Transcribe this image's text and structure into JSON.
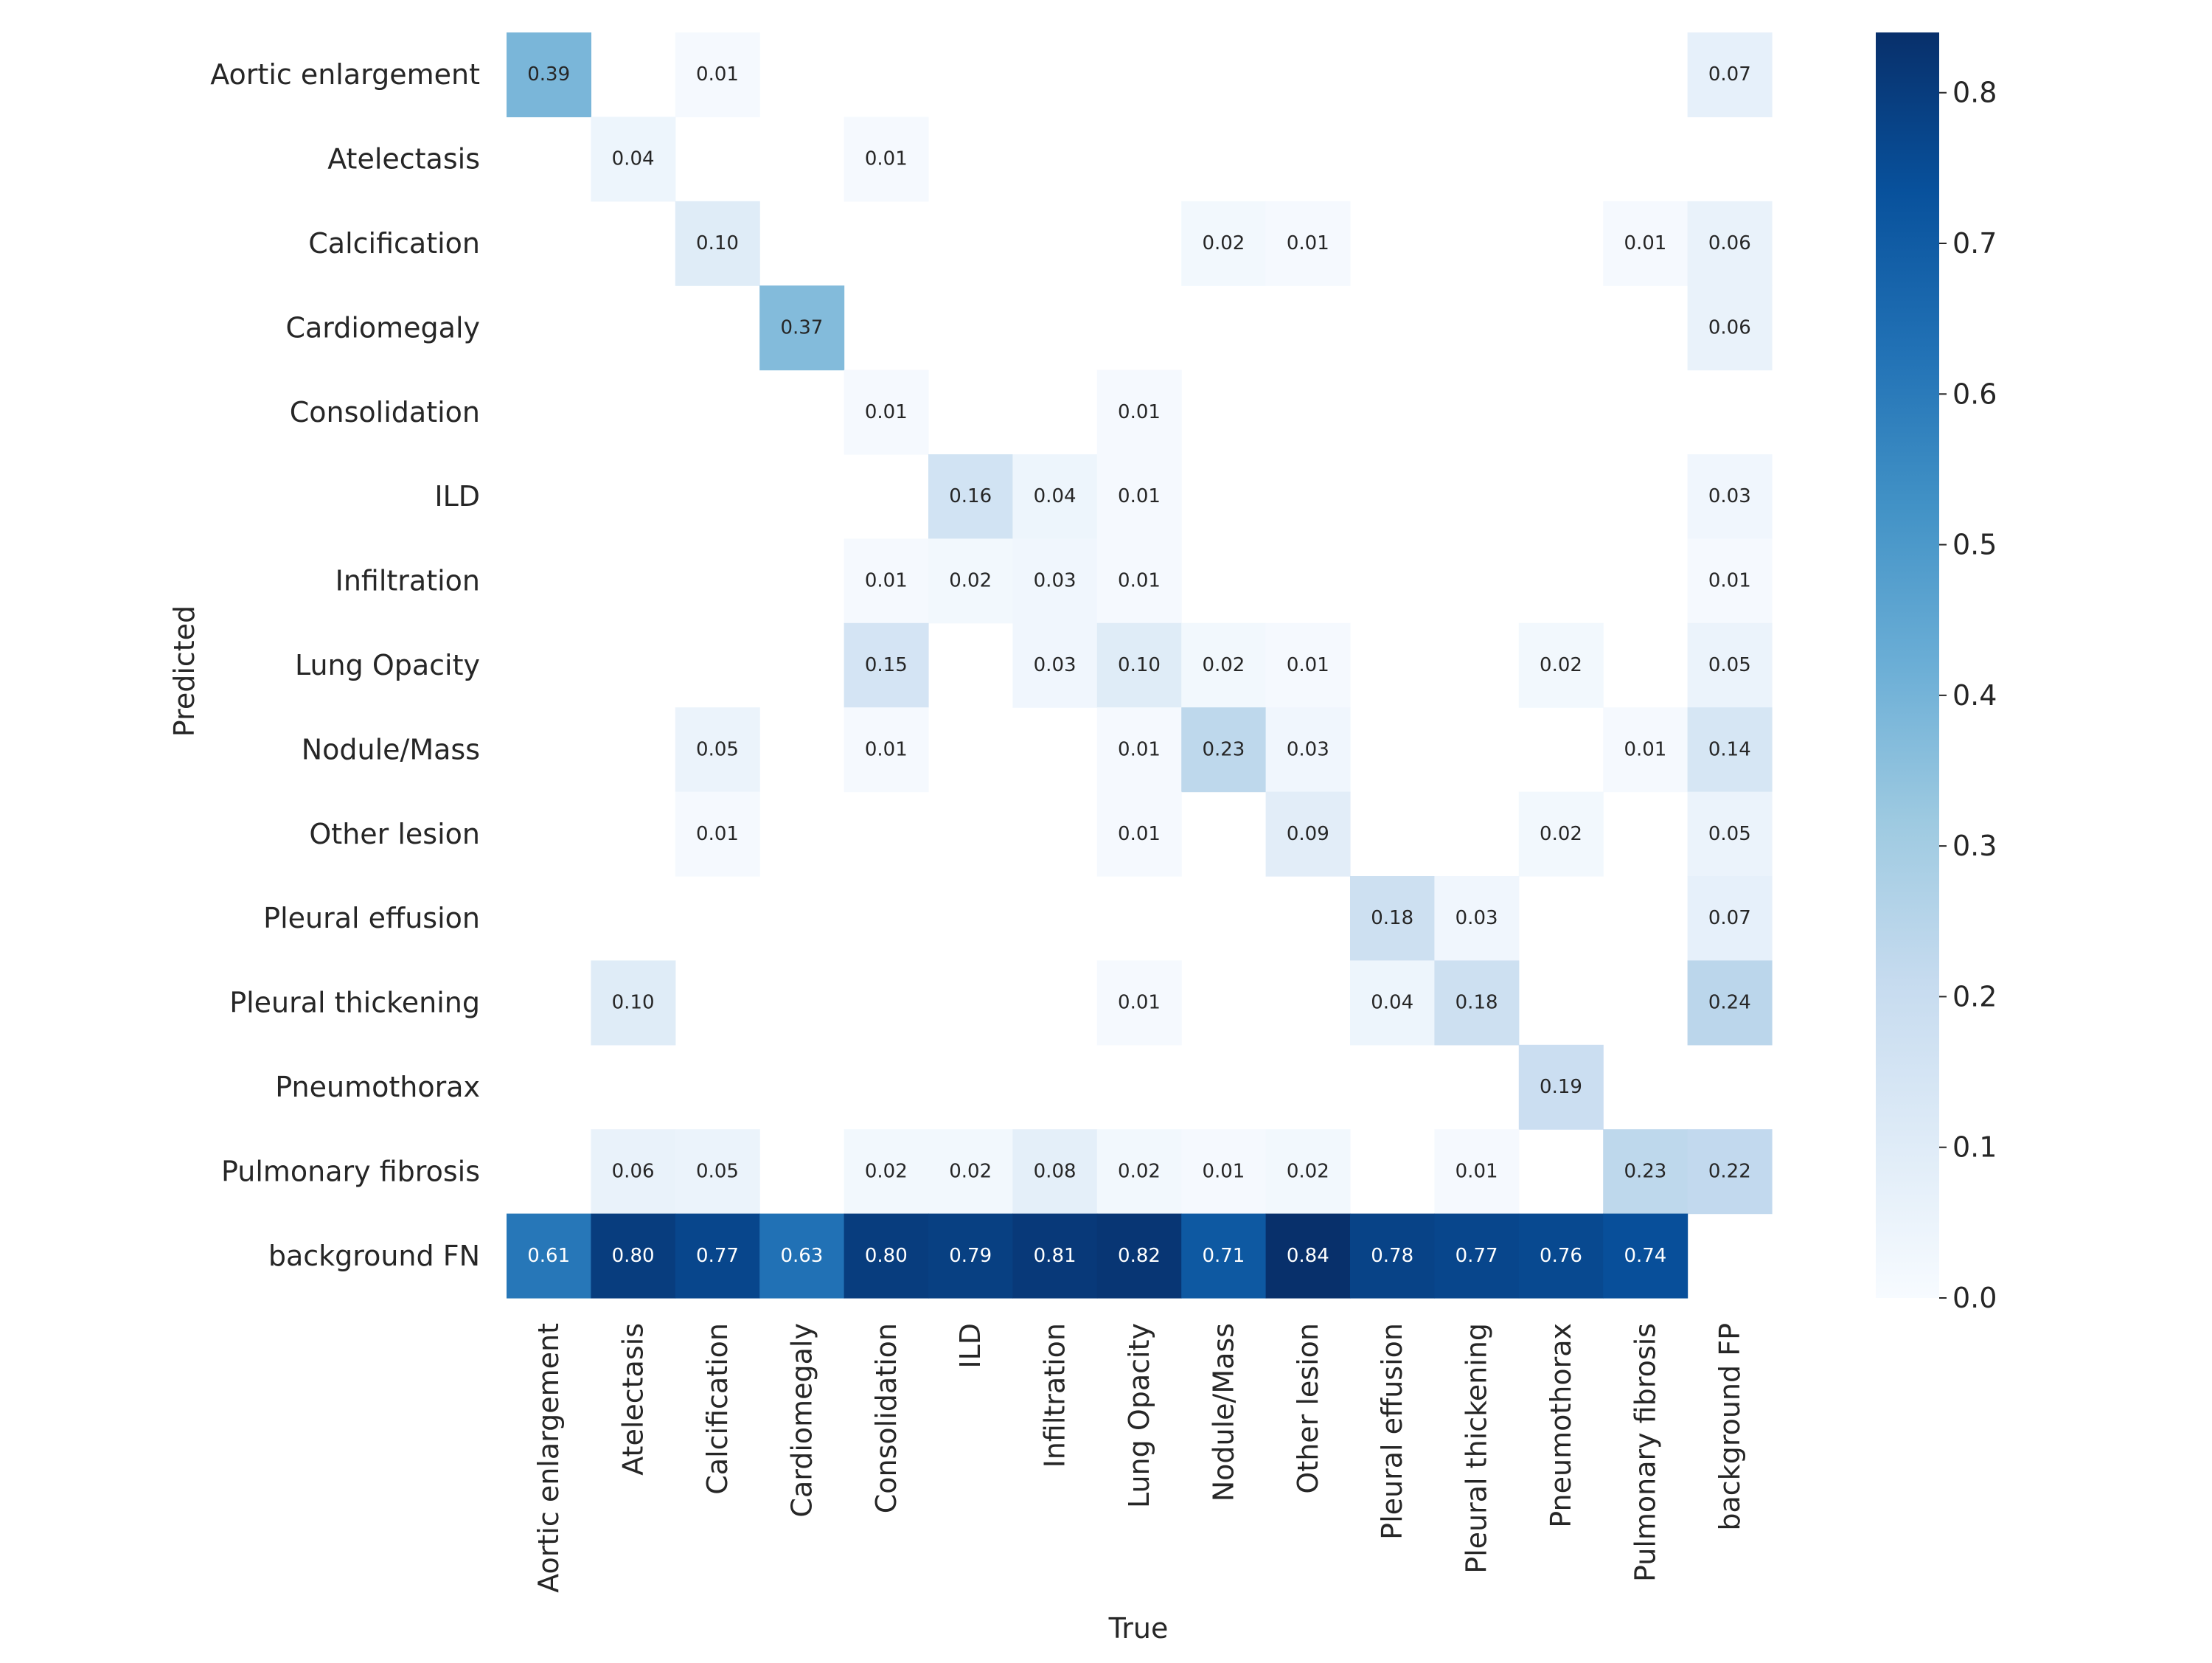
{
  "chart_data": {
    "type": "heatmap",
    "title": "",
    "xlabel": "True",
    "ylabel": "Predicted",
    "x_categories": [
      "Aortic enlargement",
      "Atelectasis",
      "Calcification",
      "Cardiomegaly",
      "Consolidation",
      "ILD",
      "Infiltration",
      "Lung Opacity",
      "Nodule/Mass",
      "Other lesion",
      "Pleural effusion",
      "Pleural thickening",
      "Pneumothorax",
      "Pulmonary fibrosis",
      "background FP"
    ],
    "y_categories": [
      "Aortic enlargement",
      "Atelectasis",
      "Calcification",
      "Cardiomegaly",
      "Consolidation",
      "ILD",
      "Infiltration",
      "Lung Opacity",
      "Nodule/Mass",
      "Other lesion",
      "Pleural effusion",
      "Pleural thickening",
      "Pneumothorax",
      "Pulmonary fibrosis",
      "background FN"
    ],
    "values": [
      [
        0.39,
        null,
        0.01,
        null,
        null,
        null,
        null,
        null,
        null,
        null,
        null,
        null,
        null,
        null,
        0.07
      ],
      [
        null,
        0.04,
        null,
        null,
        0.01,
        null,
        null,
        null,
        null,
        null,
        null,
        null,
        null,
        null,
        null
      ],
      [
        null,
        null,
        0.1,
        null,
        null,
        null,
        null,
        null,
        0.02,
        0.01,
        null,
        null,
        null,
        0.01,
        0.06
      ],
      [
        null,
        null,
        null,
        0.37,
        null,
        null,
        null,
        null,
        null,
        null,
        null,
        null,
        null,
        null,
        0.06
      ],
      [
        null,
        null,
        null,
        null,
        0.01,
        null,
        null,
        0.01,
        null,
        null,
        null,
        null,
        null,
        null,
        null
      ],
      [
        null,
        null,
        null,
        null,
        null,
        0.16,
        0.04,
        0.01,
        null,
        null,
        null,
        null,
        null,
        null,
        0.03
      ],
      [
        null,
        null,
        null,
        null,
        0.01,
        0.02,
        0.03,
        0.01,
        null,
        null,
        null,
        null,
        null,
        null,
        0.01
      ],
      [
        null,
        null,
        null,
        null,
        0.15,
        null,
        0.03,
        0.1,
        0.02,
        0.01,
        null,
        null,
        0.02,
        null,
        0.05
      ],
      [
        null,
        null,
        0.05,
        null,
        0.01,
        null,
        null,
        0.01,
        0.23,
        0.03,
        null,
        null,
        null,
        0.01,
        0.14
      ],
      [
        null,
        null,
        0.01,
        null,
        null,
        null,
        null,
        0.01,
        null,
        0.09,
        null,
        null,
        0.02,
        null,
        0.05
      ],
      [
        null,
        null,
        null,
        null,
        null,
        null,
        null,
        null,
        null,
        null,
        0.18,
        0.03,
        null,
        null,
        0.07
      ],
      [
        null,
        0.1,
        null,
        null,
        null,
        null,
        null,
        0.01,
        null,
        null,
        0.04,
        0.18,
        null,
        null,
        0.24
      ],
      [
        null,
        null,
        null,
        null,
        null,
        null,
        null,
        null,
        null,
        null,
        null,
        null,
        0.19,
        null,
        null
      ],
      [
        null,
        0.06,
        0.05,
        null,
        0.02,
        0.02,
        0.08,
        0.02,
        0.01,
        0.02,
        null,
        0.01,
        null,
        0.23,
        0.22
      ],
      [
        0.61,
        0.8,
        0.77,
        0.63,
        0.8,
        0.79,
        0.81,
        0.82,
        0.71,
        0.84,
        0.78,
        0.77,
        0.76,
        0.74,
        null
      ]
    ],
    "value_format": "0.00",
    "colormap": "Blues",
    "colorbar": {
      "vmin": 0.0,
      "vmax": 0.84,
      "ticks": [
        0.0,
        0.1,
        0.2,
        0.3,
        0.4,
        0.5,
        0.6,
        0.7,
        0.8
      ],
      "tick_labels": [
        "0.0",
        "0.1",
        "0.2",
        "0.3",
        "0.4",
        "0.5",
        "0.6",
        "0.7",
        "0.8"
      ]
    },
    "colors": {
      "blues_stops": [
        "#f7fbff",
        "#deebf7",
        "#c6dbef",
        "#9ecae1",
        "#6baed6",
        "#4292c6",
        "#2171b5",
        "#08519c",
        "#08306b"
      ],
      "text_dark": "#262626",
      "text_light": "#ffffff",
      "background": "#ffffff"
    }
  }
}
